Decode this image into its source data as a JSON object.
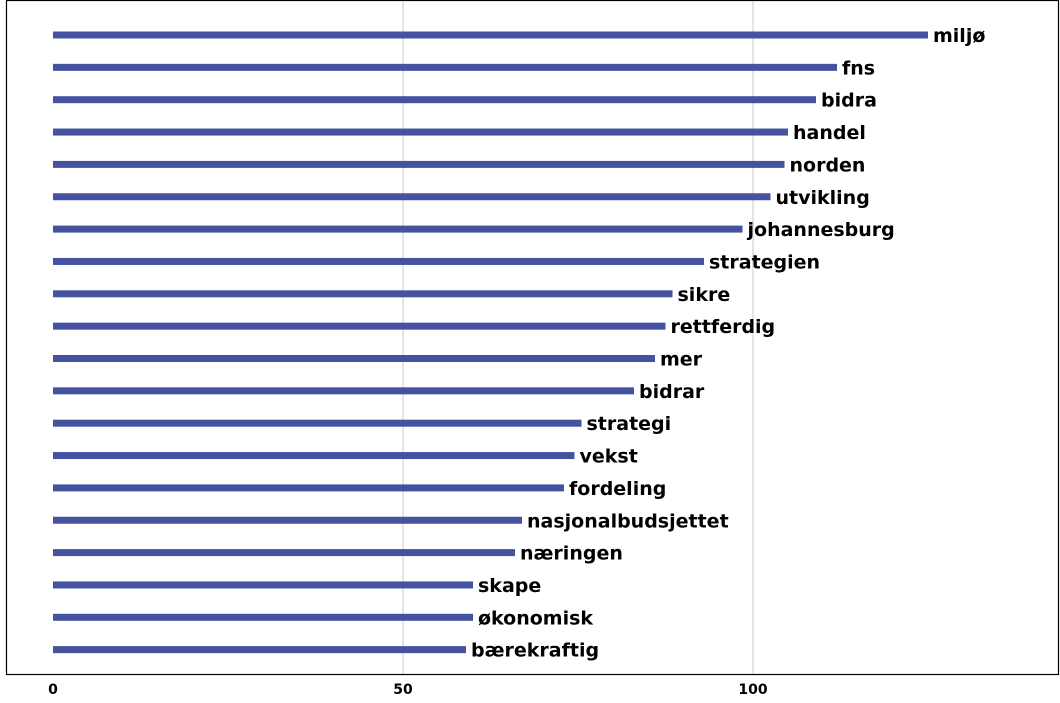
{
  "chart_data": {
    "type": "bar",
    "orientation": "horizontal",
    "categories": [
      "miljø",
      "fns",
      "bidra",
      "handel",
      "norden",
      "utvikling",
      "johannesburg",
      "strategien",
      "sikre",
      "rettferdig",
      "mer",
      "bidrar",
      "strategi",
      "vekst",
      "fordeling",
      "nasjonalbudsjettet",
      "næringen",
      "skape",
      "økonomisk",
      "bærekraftig"
    ],
    "values": [
      125,
      112,
      109,
      105,
      104.5,
      102.5,
      98.5,
      93,
      88.5,
      87.5,
      86,
      83,
      75.5,
      74.5,
      73,
      67,
      66,
      60,
      60,
      59
    ],
    "xlim": [
      0,
      140
    ],
    "xticks": [
      "0",
      "50",
      "100"
    ],
    "xtick_values": [
      0,
      50,
      100
    ],
    "grid": "vertical",
    "bar_color": "#4452a0",
    "label_placement": "end-of-bar"
  }
}
